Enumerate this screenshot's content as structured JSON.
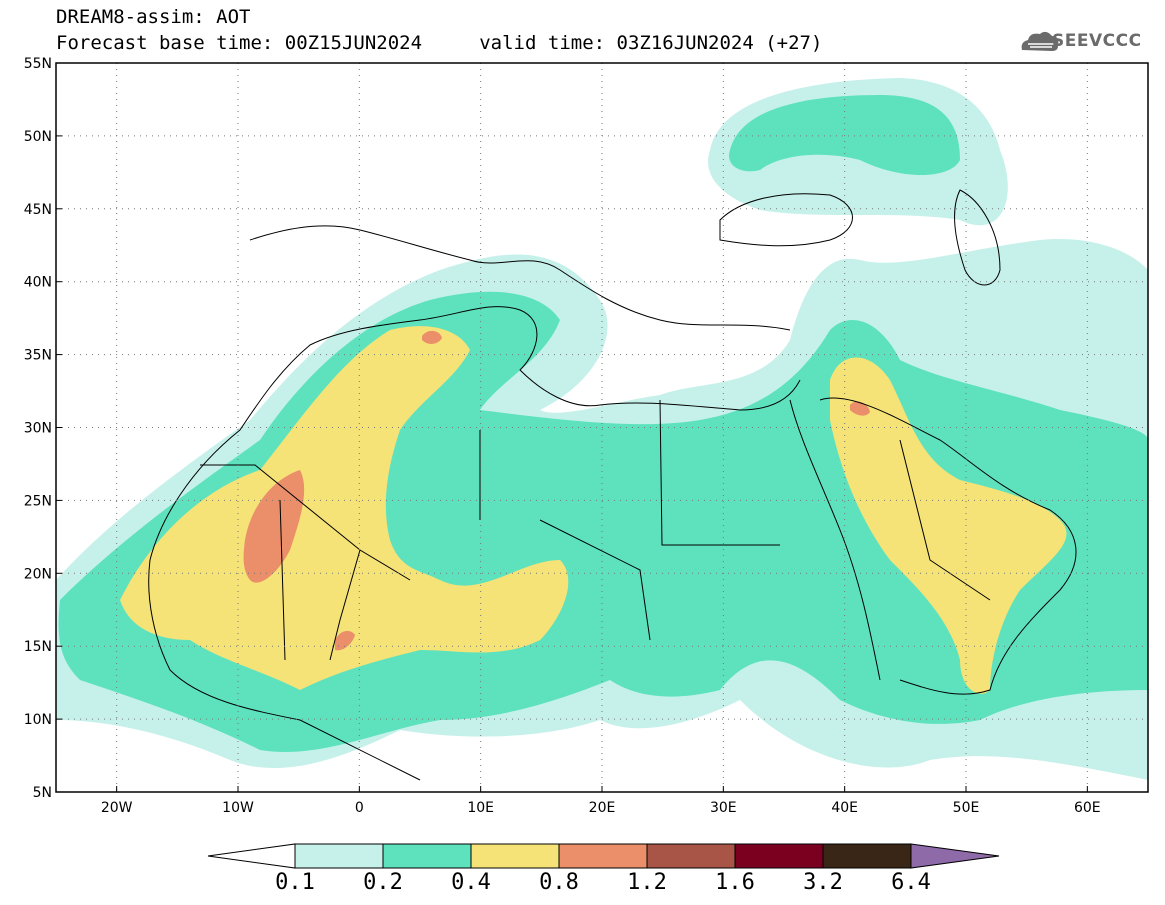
{
  "header": {
    "title": "DREAM8-assim: AOT",
    "subtitle": "Forecast base time: 00Z15JUN2024     valid time: 03Z16JUN2024 (+27)"
  },
  "logo": {
    "text": "SEEVCCC"
  },
  "map": {
    "lon_range": [
      -25,
      65
    ],
    "lat_range": [
      5,
      55
    ],
    "x_ticks": [
      "20W",
      "10W",
      "0",
      "10E",
      "20E",
      "30E",
      "40E",
      "50E",
      "60E"
    ],
    "x_tick_values": [
      -20,
      -10,
      0,
      10,
      20,
      30,
      40,
      50,
      60
    ],
    "y_ticks": [
      "5N",
      "10N",
      "15N",
      "20N",
      "25N",
      "30N",
      "35N",
      "40N",
      "45N",
      "50N",
      "55N"
    ],
    "y_tick_values": [
      5,
      10,
      15,
      20,
      25,
      30,
      35,
      40,
      45,
      50,
      55
    ],
    "grid": "dotted"
  },
  "colorbar": {
    "labels": [
      "0.1",
      "0.2",
      "0.4",
      "0.8",
      "1.2",
      "1.6",
      "3.2",
      "6.4"
    ],
    "colors": [
      "#ffffff",
      "#c6f1ea",
      "#5ee2bd",
      "#f5e378",
      "#ea8f6a",
      "#a85446",
      "#7b0020",
      "#3a2616",
      "#8f6aa9"
    ]
  }
}
